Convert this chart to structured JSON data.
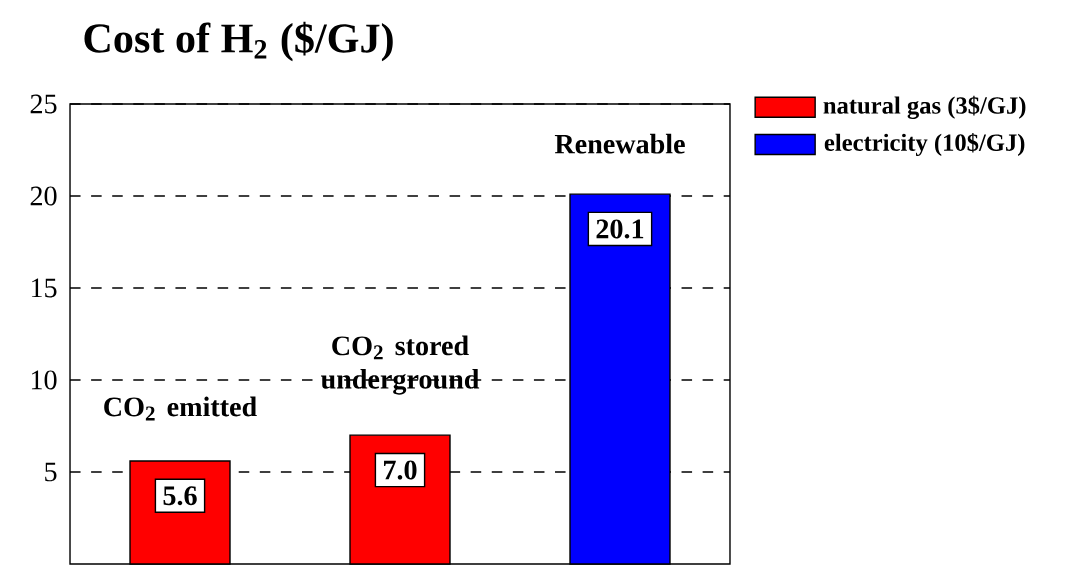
{
  "chart_data": {
    "type": "bar",
    "title": "Cost of H$_{2}$ ($/GJ)",
    "categories": [
      "CO$_{2}$ emitted",
      "CO$_{2}$ stored underground",
      "Renewable"
    ],
    "series": [
      {
        "name": "natural gas (3$/GJ)",
        "color": "#ff0000",
        "values": [
          5.6,
          7.0,
          null
        ],
        "value_labels": [
          "5.6",
          "7.0",
          null
        ]
      },
      {
        "name": "electricity (10$/GJ)",
        "color": "#0000ff",
        "values": [
          null,
          null,
          20.1
        ],
        "value_labels": [
          null,
          null,
          "20.1"
        ]
      }
    ],
    "ylim": [
      0,
      25
    ],
    "yticks": [
      5,
      10,
      15,
      20,
      25
    ],
    "grid": "y",
    "legend": "top right"
  }
}
